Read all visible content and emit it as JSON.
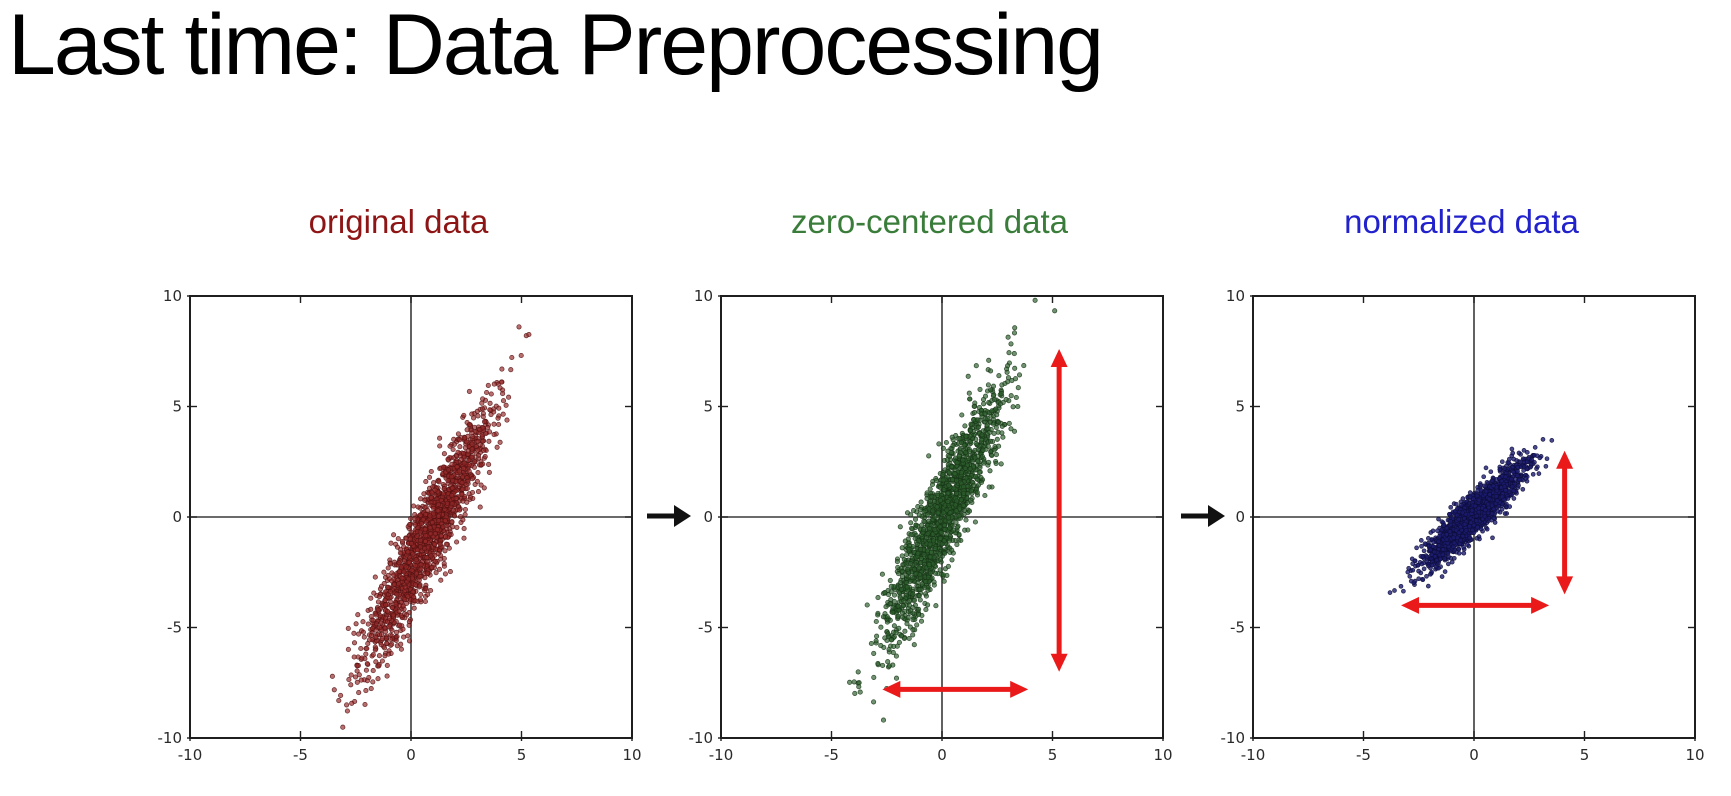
{
  "page_title": "Last time: Data Preprocessing",
  "colors": {
    "background": "#ffffff",
    "heading_text": "#000000",
    "axis_frame": "#1f1f1f",
    "zero_line": "#3a3a3a",
    "tick_label": "#2a2a2a",
    "red_arrow": "#ea1a1a",
    "flow_arrow": "#111111"
  },
  "chart_data": [
    {
      "type": "scatter",
      "title": "original data",
      "title_color": "#8e1515",
      "xlim": [
        -10,
        10
      ],
      "ylim": [
        -10,
        10
      ],
      "xticks": [
        -10,
        -5,
        0,
        5,
        10
      ],
      "xtick_labels": [
        "-10",
        "-5",
        "0",
        "5",
        "10"
      ],
      "yticks": [
        -10,
        -5,
        0,
        5,
        10
      ],
      "ytick_labels": [
        "-10",
        "-5",
        "0",
        "5",
        "10"
      ],
      "zero_cross_lines": true,
      "grid": false,
      "legend": null,
      "cluster": {
        "n": 1600,
        "center": [
          0.8,
          -0.8
        ],
        "angle_deg": 64,
        "sd_major": 3.1,
        "sd_minor": 0.5,
        "x_range_approx": [
          -3.5,
          5.1
        ],
        "y_range_approx": [
          -9.3,
          7.8
        ],
        "point_color": "#952a2a",
        "point_edge_color": "#541010",
        "point_radius": 2.2,
        "fill_opacity": 0.68,
        "seed": 101
      },
      "spread_arrows": []
    },
    {
      "type": "scatter",
      "title": "zero-centered data",
      "title_color": "#3a7d3a",
      "xlim": [
        -10,
        10
      ],
      "ylim": [
        -10,
        10
      ],
      "xticks": [
        -10,
        -5,
        0,
        5,
        10
      ],
      "xtick_labels": [
        "-10",
        "-5",
        "0",
        "5",
        "10"
      ],
      "yticks": [
        -10,
        -5,
        0,
        5,
        10
      ],
      "ytick_labels": [
        "-10",
        "-5",
        "0",
        "5",
        "10"
      ],
      "zero_cross_lines": true,
      "grid": false,
      "legend": null,
      "cluster": {
        "n": 1600,
        "center": [
          0,
          0
        ],
        "angle_deg": 66,
        "sd_major": 3.2,
        "sd_minor": 0.5,
        "x_range_approx": [
          -3.9,
          4.0
        ],
        "y_range_approx": [
          -8.8,
          9.1
        ],
        "point_color": "#2e5f2e",
        "point_edge_color": "#163516",
        "point_radius": 2.2,
        "fill_opacity": 0.68,
        "seed": 202
      },
      "spread_arrows": [
        {
          "orientation": "vertical",
          "x": 5.3,
          "y_from": -7.0,
          "y_to": 7.6
        },
        {
          "orientation": "horizontal",
          "y": -7.8,
          "x_from": -2.7,
          "x_to": 3.9
        }
      ]
    },
    {
      "type": "scatter",
      "title": "normalized data",
      "title_color": "#2222cc",
      "xlim": [
        -10,
        10
      ],
      "ylim": [
        -10,
        10
      ],
      "xticks": [
        -10,
        -5,
        0,
        5,
        10
      ],
      "xtick_labels": [
        "-10",
        "-5",
        "0",
        "5",
        "10"
      ],
      "yticks": [
        -10,
        -5,
        0,
        5,
        10
      ],
      "ytick_labels": [
        "-10",
        "-5",
        "0",
        "5",
        "10"
      ],
      "zero_cross_lines": true,
      "grid": false,
      "legend": null,
      "cluster": {
        "n": 1900,
        "center": [
          0,
          0.1
        ],
        "angle_deg": 45,
        "sd_major": 1.5,
        "sd_minor": 0.33,
        "x_range_approx": [
          -3.6,
          3.1
        ],
        "y_range_approx": [
          -3.3,
          3.5
        ],
        "point_color": "#1c1c70",
        "point_edge_color": "#0d0d38",
        "point_radius": 2.0,
        "fill_opacity": 0.8,
        "seed": 303
      },
      "spread_arrows": [
        {
          "orientation": "vertical",
          "x": 4.1,
          "y_from": -3.5,
          "y_to": 3.0
        },
        {
          "orientation": "horizontal",
          "y": -4.0,
          "x_from": -3.3,
          "x_to": 3.4
        }
      ]
    }
  ],
  "flow_arrows": [
    {
      "meaning": "transform original to zero-centered"
    },
    {
      "meaning": "transform zero-centered to normalized"
    }
  ]
}
